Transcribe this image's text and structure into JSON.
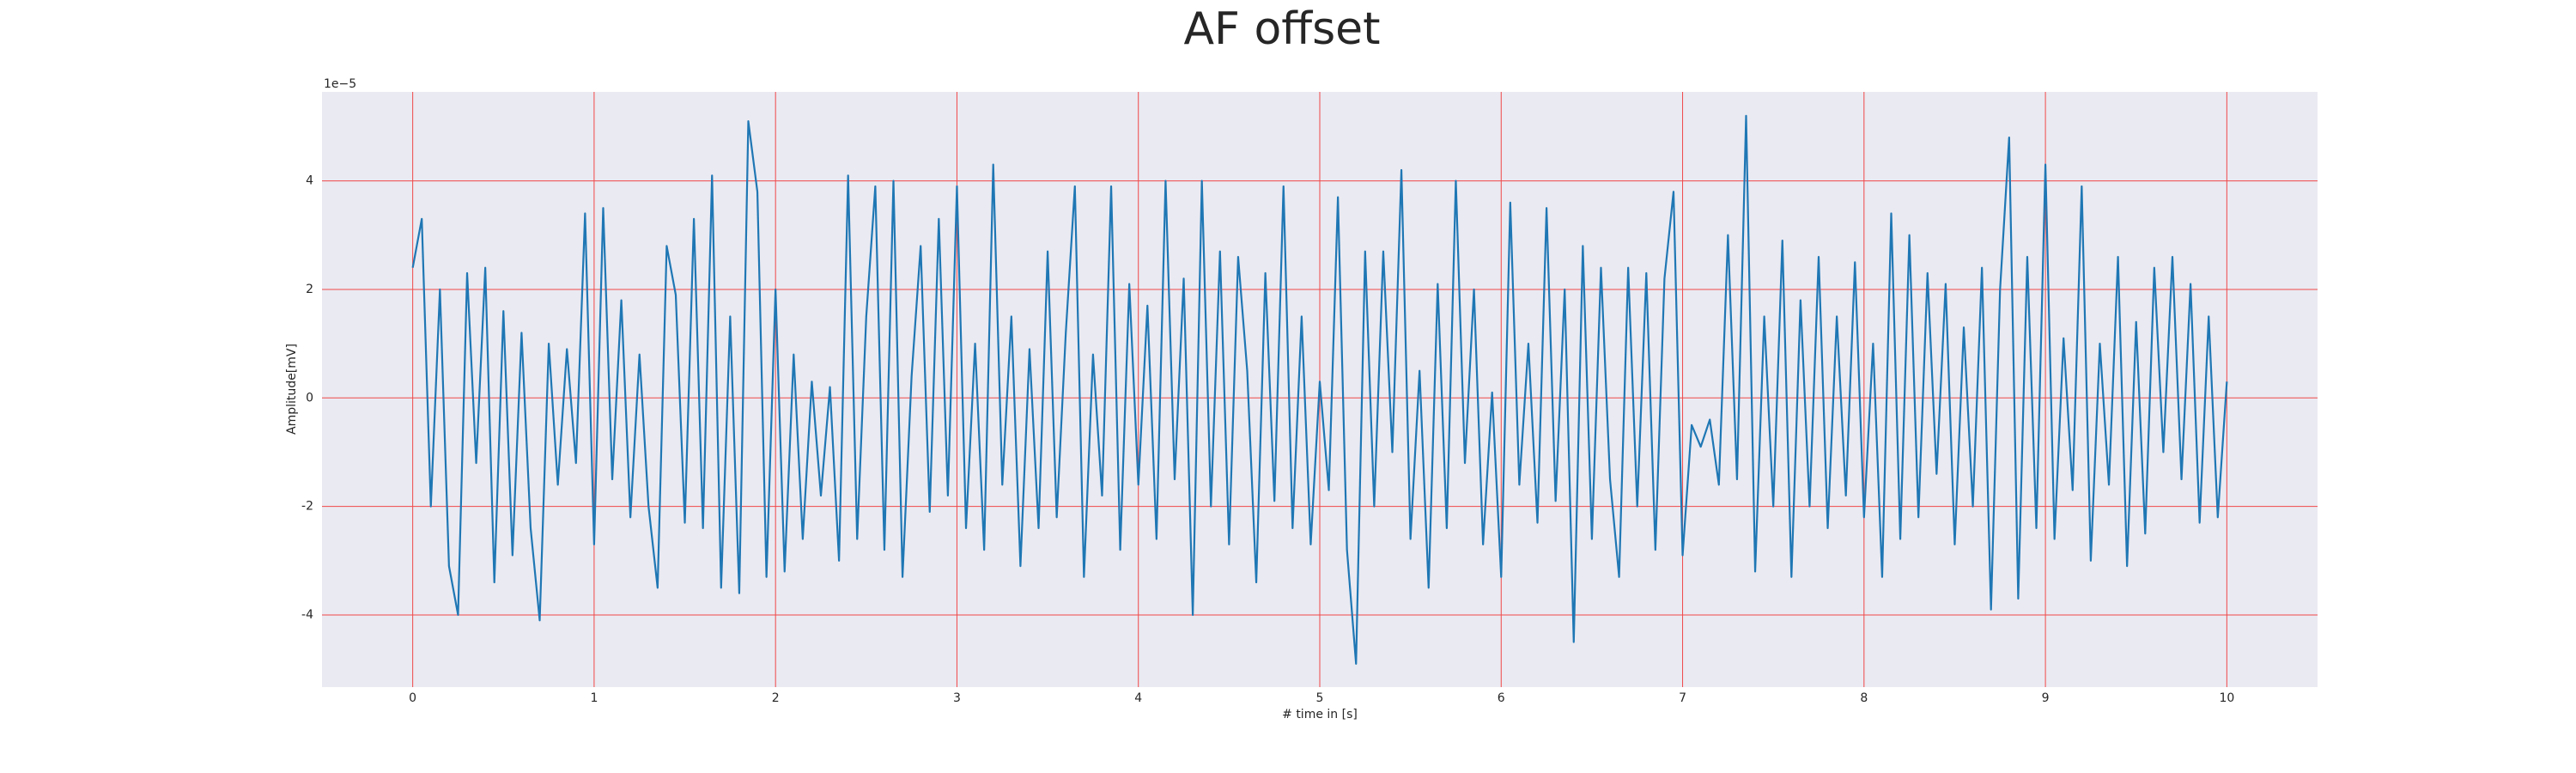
{
  "chart_data": {
    "type": "line",
    "title": "AF offset",
    "x_label": "# time in [s]",
    "y_label": "Amplitude[mV]",
    "y_offset_label": "1e−5",
    "xlim": [
      -0.5,
      10.5
    ],
    "ylim": [
      -5.33,
      5.64
    ],
    "xticks": [
      0,
      1,
      2,
      3,
      4,
      5,
      6,
      7,
      8,
      9,
      10
    ],
    "yticks": [
      -4,
      -2,
      0,
      2,
      4
    ],
    "grid": true,
    "grid_color": "#f04848",
    "background": "#eaeaf2",
    "color": "#1f77b4",
    "x": [
      0.0,
      0.05,
      0.1,
      0.15,
      0.2,
      0.25,
      0.3,
      0.35,
      0.4,
      0.45,
      0.5,
      0.55,
      0.6,
      0.65,
      0.7,
      0.75,
      0.8,
      0.85,
      0.9,
      0.95,
      1.0,
      1.05,
      1.1,
      1.15,
      1.2,
      1.25,
      1.3,
      1.35,
      1.4,
      1.45,
      1.5,
      1.55,
      1.6,
      1.65,
      1.7,
      1.75,
      1.8,
      1.85,
      1.9,
      1.95,
      2.0,
      2.05,
      2.1,
      2.15,
      2.2,
      2.25,
      2.3,
      2.35,
      2.4,
      2.45,
      2.5,
      2.55,
      2.6,
      2.65,
      2.7,
      2.75,
      2.8,
      2.85,
      2.9,
      2.95,
      3.0,
      3.05,
      3.1,
      3.15,
      3.2,
      3.25,
      3.3,
      3.35,
      3.4,
      3.45,
      3.5,
      3.55,
      3.6,
      3.65,
      3.7,
      3.75,
      3.8,
      3.85,
      3.9,
      3.95,
      4.0,
      4.05,
      4.1,
      4.15,
      4.2,
      4.25,
      4.3,
      4.35,
      4.4,
      4.45,
      4.5,
      4.55,
      4.6,
      4.65,
      4.7,
      4.75,
      4.8,
      4.85,
      4.9,
      4.95,
      5.0,
      5.05,
      5.1,
      5.15,
      5.2,
      5.25,
      5.3,
      5.35,
      5.4,
      5.45,
      5.5,
      5.55,
      5.6,
      5.65,
      5.7,
      5.75,
      5.8,
      5.85,
      5.9,
      5.95,
      6.0,
      6.05,
      6.1,
      6.15,
      6.2,
      6.25,
      6.3,
      6.35,
      6.4,
      6.45,
      6.5,
      6.55,
      6.6,
      6.65,
      6.7,
      6.75,
      6.8,
      6.85,
      6.9,
      6.95,
      7.0,
      7.05,
      7.1,
      7.15,
      7.2,
      7.25,
      7.3,
      7.35,
      7.4,
      7.45,
      7.5,
      7.55,
      7.6,
      7.65,
      7.7,
      7.75,
      7.8,
      7.85,
      7.9,
      7.95,
      8.0,
      8.05,
      8.1,
      8.15,
      8.2,
      8.25,
      8.3,
      8.35,
      8.4,
      8.45,
      8.5,
      8.55,
      8.6,
      8.65,
      8.7,
      8.75,
      8.8,
      8.85,
      8.9,
      8.95,
      9.0,
      9.05,
      9.1,
      9.15,
      9.2,
      9.25,
      9.3,
      9.35,
      9.4,
      9.45,
      9.5,
      9.55,
      9.6,
      9.65,
      9.7,
      9.75,
      9.8,
      9.85,
      9.9,
      9.95,
      10.0
    ],
    "values": [
      2.4,
      3.3,
      -2.0,
      2.0,
      -3.1,
      -4.0,
      2.3,
      -1.2,
      2.4,
      -3.4,
      1.6,
      -2.9,
      1.2,
      -2.4,
      -4.1,
      1.0,
      -1.6,
      0.9,
      -1.2,
      3.4,
      -2.7,
      3.5,
      -1.5,
      1.8,
      -2.2,
      0.8,
      -2.0,
      -3.5,
      2.8,
      1.9,
      -2.3,
      3.3,
      -2.4,
      4.1,
      -3.5,
      1.5,
      -3.6,
      5.1,
      3.8,
      -3.3,
      2.0,
      -3.2,
      0.8,
      -2.6,
      0.3,
      -1.8,
      0.2,
      -3.0,
      4.1,
      -2.6,
      1.5,
      3.9,
      -2.8,
      4.0,
      -3.3,
      0.4,
      2.8,
      -2.1,
      3.3,
      -1.8,
      3.9,
      -2.4,
      1.0,
      -2.8,
      4.3,
      -1.6,
      1.5,
      -3.1,
      0.9,
      -2.4,
      2.7,
      -2.2,
      1.2,
      3.9,
      -3.3,
      0.8,
      -1.8,
      3.9,
      -2.8,
      2.1,
      -1.6,
      1.7,
      -2.6,
      4.0,
      -1.5,
      2.2,
      -4.0,
      4.0,
      -2.0,
      2.7,
      -2.7,
      2.6,
      0.5,
      -3.4,
      2.3,
      -1.9,
      3.9,
      -2.4,
      1.5,
      -2.7,
      0.3,
      -1.7,
      3.7,
      -2.8,
      -4.9,
      2.7,
      -2.0,
      2.7,
      -1.0,
      4.2,
      -2.6,
      0.5,
      -3.5,
      2.1,
      -2.4,
      4.0,
      -1.2,
      2.0,
      -2.7,
      0.1,
      -3.3,
      3.6,
      -1.6,
      1.0,
      -2.3,
      3.5,
      -1.9,
      2.0,
      -4.5,
      2.8,
      -2.6,
      2.4,
      -1.5,
      -3.3,
      2.4,
      -2.0,
      2.3,
      -2.8,
      2.2,
      3.8,
      -2.9,
      -0.5,
      -0.9,
      -0.4,
      -1.6,
      3.0,
      -1.5,
      5.2,
      -3.2,
      1.5,
      -2.0,
      2.9,
      -3.3,
      1.8,
      -2.0,
      2.6,
      -2.4,
      1.5,
      -1.8,
      2.5,
      -2.2,
      1.0,
      -3.3,
      3.4,
      -2.6,
      3.0,
      -2.2,
      2.3,
      -1.4,
      2.1,
      -2.7,
      1.3,
      -2.0,
      2.4,
      -3.9,
      2.0,
      4.8,
      -3.7,
      2.6,
      -2.4,
      4.3,
      -2.6,
      1.1,
      -1.7,
      3.9,
      -3.0,
      1.0,
      -1.6,
      2.6,
      -3.1,
      1.4,
      -2.5,
      2.4,
      -1.0,
      2.6,
      -1.5,
      2.1,
      -2.3,
      1.5,
      -2.2,
      0.3
    ]
  }
}
